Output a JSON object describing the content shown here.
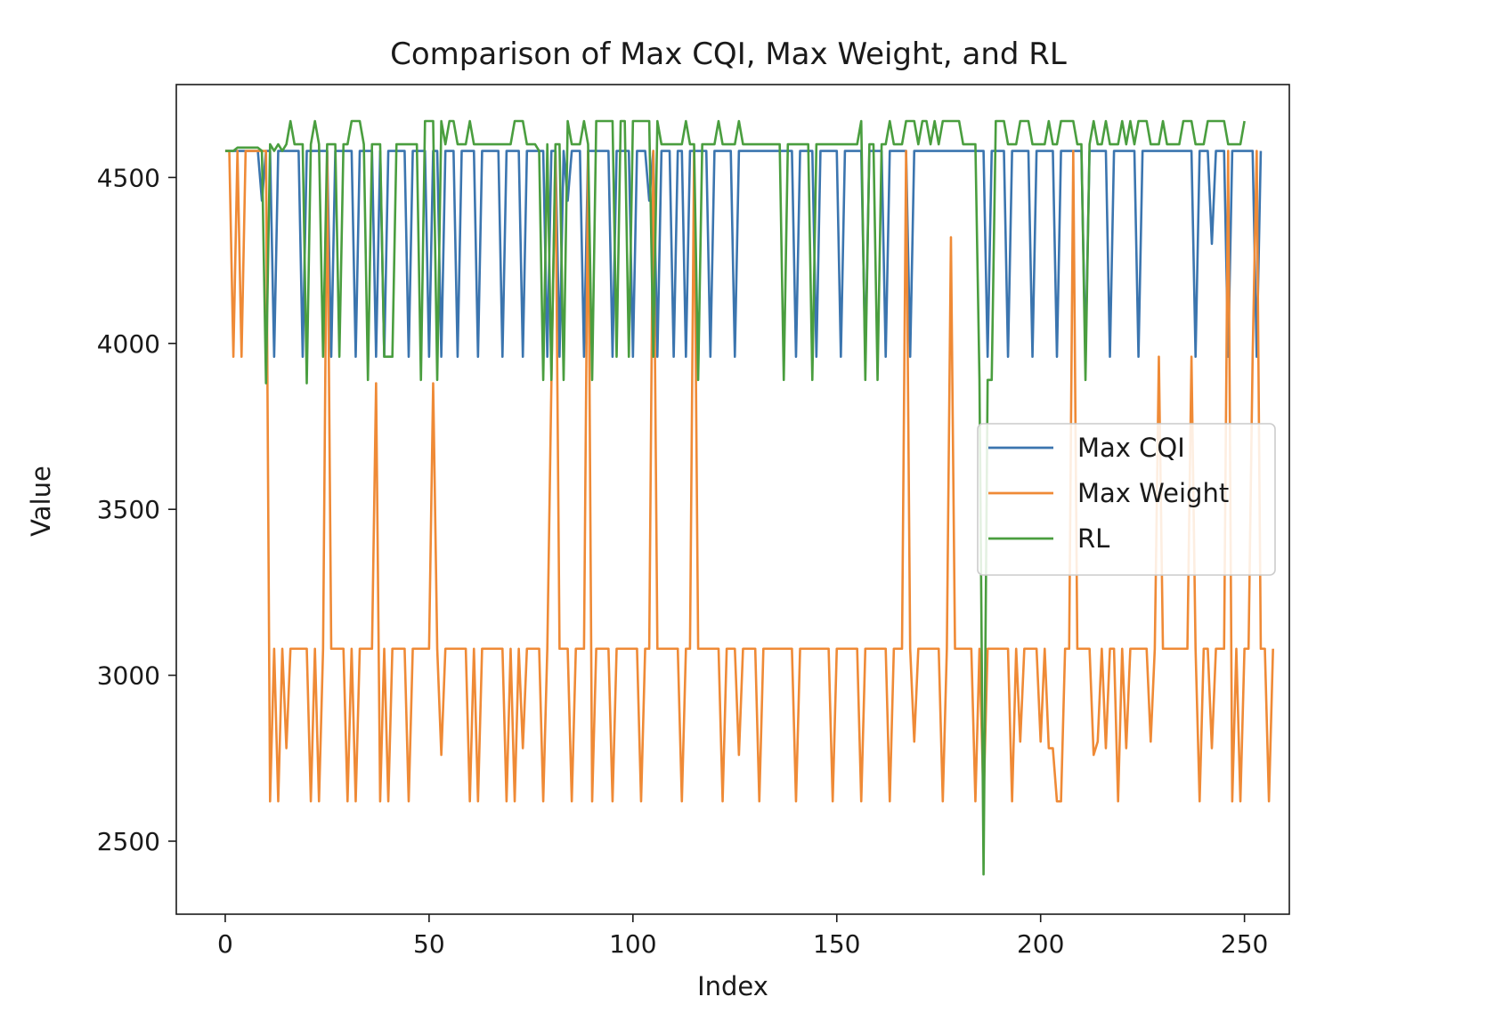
{
  "chart_data": {
    "type": "line",
    "title": "Comparison of Max CQI, Max Weight, and RL",
    "xlabel": "Index",
    "ylabel": "Value",
    "xlim": [
      -12,
      261
    ],
    "ylim": [
      2280,
      4780
    ],
    "xticks": [
      0,
      50,
      100,
      150,
      200,
      250
    ],
    "yticks": [
      2500,
      3000,
      3500,
      4000,
      4500
    ],
    "grid": false,
    "legend_position": "center-right",
    "series": [
      {
        "name": "Max CQI",
        "color": "#3b75af",
        "values": [
          4580,
          4580,
          4580,
          4580,
          4580,
          4580,
          4580,
          4580,
          4580,
          4430,
          4580,
          4580,
          3960,
          4580,
          4580,
          4580,
          4580,
          4580,
          4580,
          3960,
          4580,
          4580,
          4580,
          4580,
          4580,
          4580,
          3960,
          4580,
          4580,
          4580,
          4580,
          4580,
          3960,
          4580,
          4580,
          4580,
          4580,
          3960,
          4580,
          3960,
          4580,
          4580,
          4580,
          4580,
          4580,
          3960,
          4580,
          4580,
          4580,
          4580,
          3960,
          4580,
          4580,
          3960,
          4580,
          4580,
          4580,
          3960,
          4580,
          4580,
          4580,
          4580,
          3960,
          4580,
          4580,
          4580,
          4580,
          4580,
          3960,
          4580,
          4580,
          4580,
          4580,
          3960,
          4580,
          4580,
          4580,
          4580,
          4580,
          3960,
          4580,
          4580,
          3960,
          4580,
          4430,
          4580,
          4580,
          4580,
          3960,
          4580,
          4580,
          4580,
          4580,
          4580,
          4580,
          3960,
          4580,
          4580,
          4580,
          4580,
          3960,
          4580,
          4580,
          4580,
          4430,
          4580,
          3960,
          4580,
          4580,
          4580,
          3960,
          4580,
          4580,
          3960,
          4580,
          4580,
          4580,
          4580,
          4580,
          3960,
          4580,
          4580,
          4580,
          4580,
          4580,
          3960,
          4580,
          4580,
          4580,
          4580,
          4580,
          4580,
          4580,
          4580,
          4580,
          4580,
          4580,
          4580,
          4580,
          4580,
          3960,
          4580,
          4580,
          4580,
          4580,
          3960,
          4580,
          4580,
          4580,
          4580,
          4580,
          3960,
          4580,
          4580,
          4580,
          4580,
          4580,
          3960,
          4580,
          4580,
          4580,
          4580,
          3960,
          4580,
          4580,
          4580,
          4580,
          4580,
          3960,
          4580,
          4580,
          4580,
          4580,
          4580,
          4580,
          4580,
          4580,
          4580,
          4580,
          4580,
          4580,
          4580,
          4580,
          4580,
          4580,
          4580,
          4580,
          3960,
          4580,
          4580,
          4580,
          4580,
          3960,
          4580,
          4580,
          4580,
          4580,
          4580,
          3960,
          4580,
          4580,
          4580,
          4580,
          4580,
          3960,
          4580,
          4580,
          4580,
          4580,
          4580,
          4580,
          3960,
          4580,
          4580,
          4580,
          4580,
          4580,
          3960,
          4580,
          4580,
          4580,
          4580,
          4580,
          4580,
          3960,
          4580,
          4580,
          4580,
          4580,
          4580,
          4580,
          4580,
          4580,
          4580,
          4580,
          4580,
          4580,
          4580,
          3960,
          4580,
          4580,
          4580,
          4300,
          4580,
          4580,
          4580,
          3960,
          4580,
          4580,
          4580,
          4580,
          4580,
          4580,
          3960,
          4580
        ]
      },
      {
        "name": "Max Weight",
        "color": "#ef8a36",
        "values": [
          4580,
          4580,
          3960,
          4580,
          3960,
          4580,
          4580,
          4580,
          4580,
          4580,
          4580,
          2620,
          3080,
          2620,
          3080,
          2780,
          3080,
          3080,
          3080,
          3080,
          3080,
          2620,
          3080,
          2620,
          3080,
          4580,
          3080,
          3080,
          3080,
          3080,
          2620,
          3080,
          2620,
          3080,
          3080,
          3080,
          3080,
          3880,
          2620,
          3080,
          2620,
          3080,
          3080,
          3080,
          3080,
          2620,
          3080,
          3080,
          3080,
          3080,
          3080,
          3880,
          3080,
          2760,
          3080,
          3080,
          3080,
          3080,
          3080,
          3080,
          2620,
          3080,
          2620,
          3080,
          3080,
          3080,
          3080,
          3080,
          3080,
          2620,
          3080,
          2620,
          3080,
          2780,
          3080,
          3080,
          3080,
          3080,
          2620,
          3080,
          3880,
          4580,
          3080,
          3080,
          3080,
          2620,
          3080,
          3080,
          3080,
          4580,
          2620,
          3080,
          3080,
          3080,
          3080,
          2620,
          3080,
          3080,
          3080,
          3080,
          3080,
          3080,
          2620,
          3080,
          3080,
          4580,
          3080,
          3080,
          3080,
          3080,
          3080,
          3080,
          2620,
          3080,
          3080,
          4580,
          3080,
          3080,
          3080,
          3080,
          3080,
          3080,
          2620,
          3080,
          3080,
          3080,
          2760,
          3080,
          3080,
          3080,
          3080,
          2620,
          3080,
          3080,
          3080,
          3080,
          3080,
          3080,
          3080,
          3080,
          2620,
          3080,
          3080,
          3080,
          3080,
          3080,
          3080,
          3080,
          3080,
          2620,
          3080,
          3080,
          3080,
          3080,
          3080,
          3080,
          2620,
          3080,
          3080,
          3080,
          3080,
          3080,
          3080,
          2620,
          3080,
          3080,
          3080,
          4580,
          3080,
          2800,
          3080,
          3080,
          3080,
          3080,
          3080,
          3080,
          2620,
          3080,
          4320,
          3080,
          3080,
          3080,
          3080,
          3080,
          2620,
          3080,
          2620,
          3080,
          3080,
          3080,
          3080,
          3080,
          3080,
          2620,
          3080,
          2800,
          3080,
          3080,
          3080,
          3080,
          2800,
          3080,
          2780,
          2780,
          2620,
          2620,
          3080,
          3080,
          4580,
          3080,
          3080,
          3080,
          3080,
          2760,
          2800,
          3080,
          2780,
          3080,
          3080,
          2620,
          3080,
          2780,
          3080,
          3080,
          3080,
          3080,
          3080,
          2800,
          3080,
          3960,
          3080,
          3080,
          3080,
          3080,
          3080,
          3080,
          3080,
          3960,
          3080,
          2620,
          3080,
          3080,
          2780,
          3080,
          3080,
          3080,
          4580,
          2620,
          3080,
          2620,
          3080,
          3080,
          3960,
          4580,
          3080,
          3080,
          2620,
          3080
        ]
      },
      {
        "name": "RL",
        "color": "#4a9e3f",
        "values": [
          4580,
          4580,
          4580,
          4590,
          4590,
          4590,
          4590,
          4590,
          4590,
          4580,
          3880,
          4600,
          4580,
          4600,
          4580,
          4600,
          4670,
          4600,
          4600,
          4600,
          3880,
          4600,
          4670,
          4600,
          3960,
          4600,
          4600,
          4600,
          3960,
          4600,
          4600,
          4670,
          4670,
          4670,
          4600,
          3890,
          4600,
          4600,
          4600,
          3960,
          3960,
          3960,
          4600,
          4600,
          4600,
          4600,
          4600,
          4600,
          3890,
          4670,
          4670,
          4670,
          3890,
          4670,
          4600,
          4670,
          4670,
          4600,
          4600,
          4600,
          4670,
          4600,
          4600,
          4600,
          4600,
          4600,
          4600,
          4600,
          4600,
          4600,
          4600,
          4670,
          4670,
          4670,
          4600,
          4600,
          4600,
          4580,
          3890,
          4600,
          3890,
          4600,
          4600,
          3890,
          4670,
          4600,
          4600,
          4600,
          4670,
          4600,
          3890,
          4670,
          4670,
          4670,
          4670,
          4670,
          3960,
          4670,
          4670,
          3960,
          4670,
          4670,
          4670,
          4670,
          4670,
          3960,
          4670,
          4600,
          4600,
          4600,
          4600,
          4600,
          4600,
          4670,
          4600,
          4600,
          3890,
          4600,
          4600,
          4600,
          4600,
          4670,
          4600,
          4600,
          4600,
          4600,
          4670,
          4600,
          4600,
          4600,
          4600,
          4600,
          4600,
          4600,
          4600,
          4600,
          4600,
          3890,
          4600,
          4600,
          4600,
          4600,
          4600,
          4600,
          3890,
          4600,
          4600,
          4600,
          4600,
          4600,
          4600,
          4600,
          4600,
          4600,
          4600,
          4600,
          4670,
          3890,
          4600,
          4600,
          3890,
          4600,
          4600,
          4670,
          4600,
          4600,
          4600,
          4670,
          4670,
          4670,
          4600,
          4670,
          4670,
          4600,
          4670,
          4600,
          4670,
          4670,
          4670,
          4670,
          4670,
          4600,
          4600,
          4600,
          4600,
          3890,
          2400,
          3890,
          3890,
          4670,
          4670,
          4670,
          4600,
          4600,
          4600,
          4670,
          4670,
          4670,
          4600,
          4600,
          4600,
          4600,
          4670,
          4600,
          4600,
          4670,
          4670,
          4670,
          4670,
          4600,
          4600,
          3890,
          4600,
          4670,
          4600,
          4600,
          4670,
          4600,
          4600,
          4600,
          4670,
          4600,
          4670,
          4600,
          4670,
          4670,
          4670,
          4600,
          4600,
          4600,
          4670,
          4600,
          4600,
          4600,
          4600,
          4670,
          4670,
          4670,
          4600,
          4600,
          4600,
          4670,
          4670,
          4670,
          4670,
          4670,
          4600,
          4600,
          4600,
          4600,
          4670
        ]
      }
    ]
  }
}
